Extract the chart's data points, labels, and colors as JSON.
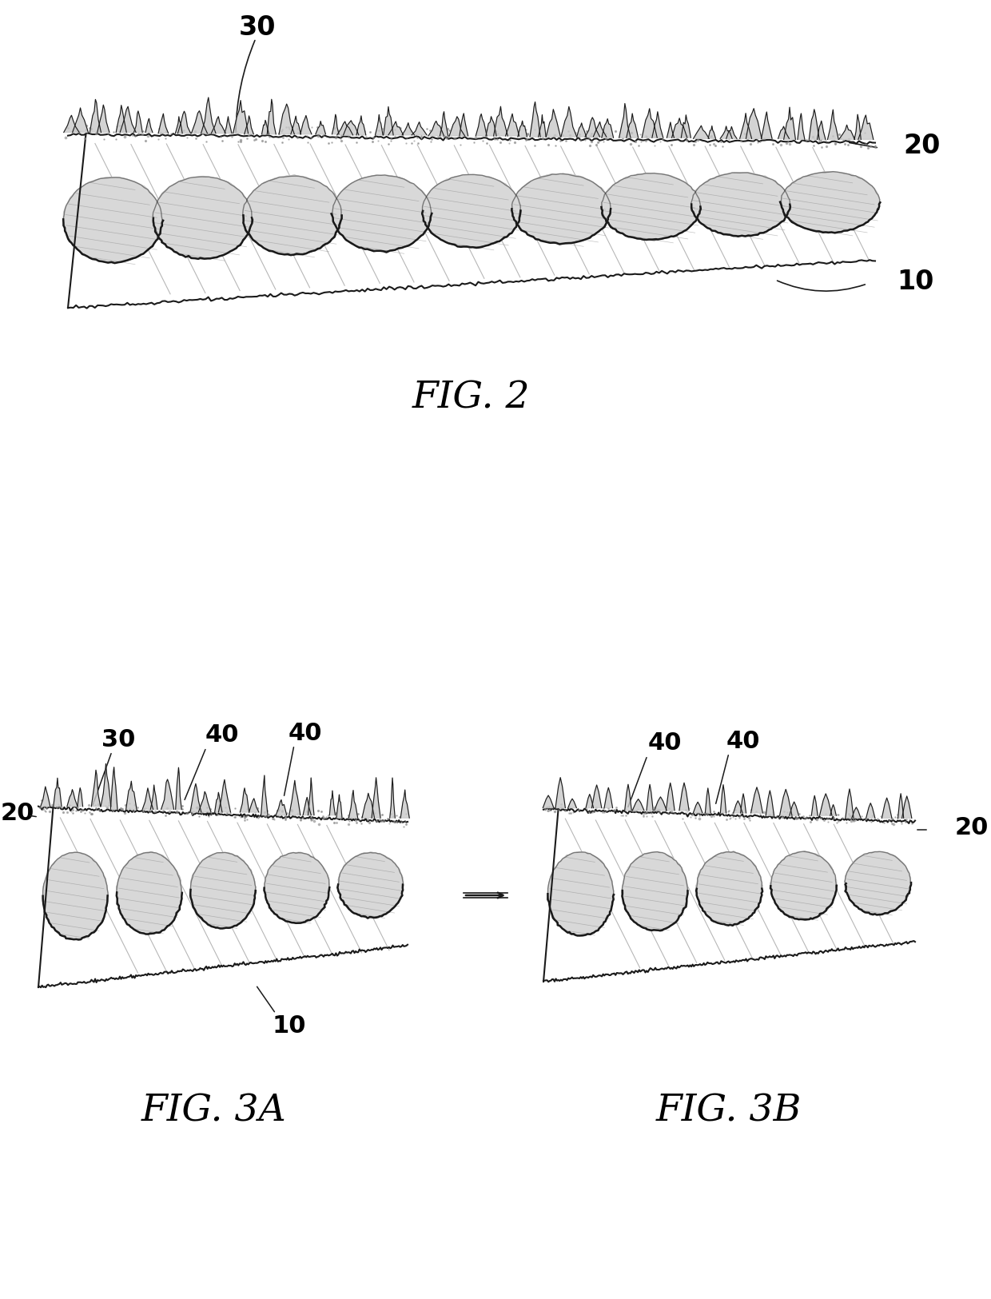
{
  "background_color": "#ffffff",
  "fig2_label": "FIG. 2",
  "fig3a_label": "FIG. 3A",
  "fig3b_label": "FIG. 3B",
  "label_30": "30",
  "label_20": "20",
  "label_10": "10",
  "label_40": "40",
  "draw_color": "#1a1a1a",
  "light_gray": "#c8c8c8",
  "mid_gray": "#888888",
  "dark_gray": "#444444",
  "hatch_gray": "#999999"
}
